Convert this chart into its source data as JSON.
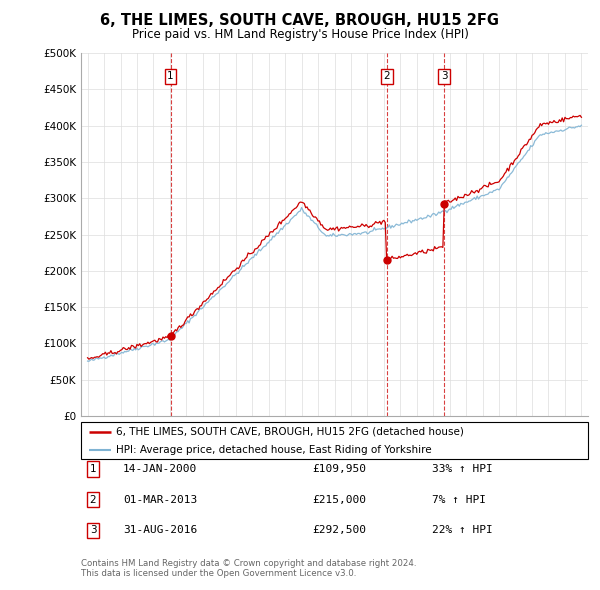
{
  "title": "6, THE LIMES, SOUTH CAVE, BROUGH, HU15 2FG",
  "subtitle": "Price paid vs. HM Land Registry's House Price Index (HPI)",
  "ylim": [
    0,
    500000
  ],
  "yticks": [
    0,
    50000,
    100000,
    150000,
    200000,
    250000,
    300000,
    350000,
    400000,
    450000,
    500000
  ],
  "ytick_labels": [
    "£0",
    "£50K",
    "£100K",
    "£150K",
    "£200K",
    "£250K",
    "£300K",
    "£350K",
    "£400K",
    "£450K",
    "£500K"
  ],
  "sale_events": [
    {
      "number": 1,
      "date": "14-JAN-2000",
      "price": 109950,
      "hpi_change": "33% ↑ HPI",
      "year": 2000.04
    },
    {
      "number": 2,
      "date": "01-MAR-2013",
      "price": 215000,
      "hpi_change": "7% ↑ HPI",
      "year": 2013.17
    },
    {
      "number": 3,
      "date": "31-AUG-2016",
      "price": 292500,
      "hpi_change": "22% ↑ HPI",
      "year": 2016.67
    }
  ],
  "legend_line1": "6, THE LIMES, SOUTH CAVE, BROUGH, HU15 2FG (detached house)",
  "legend_line2": "HPI: Average price, detached house, East Riding of Yorkshire",
  "footer_line1": "Contains HM Land Registry data © Crown copyright and database right 2024.",
  "footer_line2": "This data is licensed under the Open Government Licence v3.0.",
  "red_color": "#cc0000",
  "blue_color": "#7fb3d3",
  "grid_color": "#dddddd",
  "xlim_left": 1994.6,
  "xlim_right": 2025.4
}
